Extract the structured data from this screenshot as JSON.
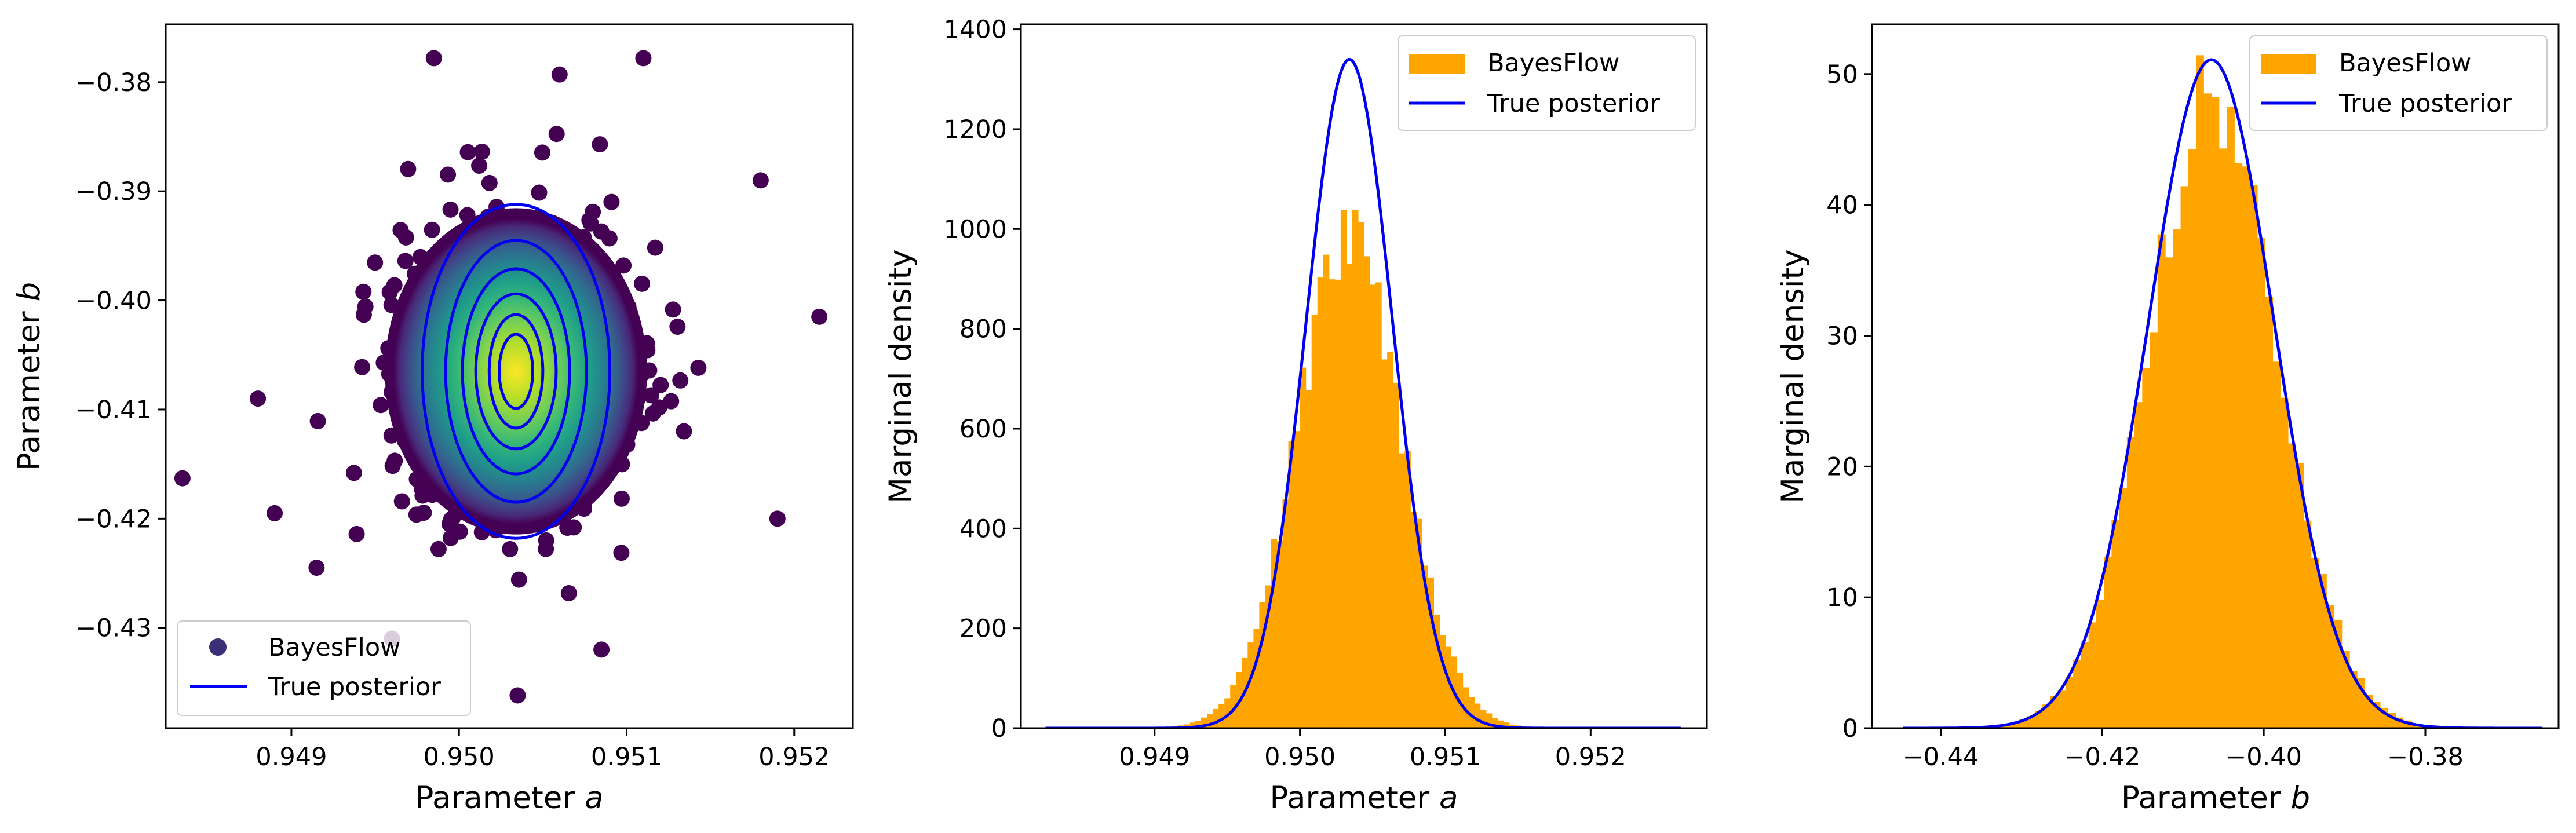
{
  "colors": {
    "histogram": "#ffa500",
    "true_posterior": "#0000ee",
    "scatter_outer": "#440154",
    "scatter_center": "#fde725",
    "legend_marker": "#3b2f78"
  },
  "chart_data": [
    {
      "type": "scatter",
      "xlabel": "Parameter a",
      "ylabel": "Parameter b",
      "xlabel_text": "Parameter ",
      "xlabel_symbol": "a",
      "ylabel_text": "Parameter ",
      "ylabel_symbol": "b",
      "xlim": [
        0.94825,
        0.95235
      ],
      "ylim": [
        -0.4392,
        -0.3747
      ],
      "xticks": [
        0.949,
        0.95,
        0.951,
        0.952
      ],
      "xtick_labels": [
        "0.949",
        "0.950",
        "0.951",
        "0.952"
      ],
      "yticks": [
        -0.38,
        -0.39,
        -0.4,
        -0.41,
        -0.42,
        -0.43
      ],
      "ytick_labels": [
        "−0.38",
        "−0.39",
        "−0.40",
        "−0.41",
        "−0.42",
        "−0.43"
      ],
      "legend": {
        "location": "lower-left",
        "entries": [
          "BayesFlow",
          "True posterior"
        ]
      },
      "scatter_center": [
        0.95034,
        -0.4065
      ],
      "scatter_sd": [
        0.00034,
        0.0065
      ],
      "outliers": [
        [
          0.94835,
          -0.4163
        ],
        [
          0.9489,
          -0.4195
        ],
        [
          0.94915,
          -0.4245
        ],
        [
          0.95215,
          -0.4015
        ],
        [
          0.9519,
          -0.42
        ],
        [
          0.9496,
          -0.431
        ],
        [
          0.95035,
          -0.4362
        ],
        [
          0.95085,
          -0.432
        ],
        [
          0.94985,
          -0.3778
        ],
        [
          0.9511,
          -0.3778
        ],
        [
          0.9506,
          -0.3793
        ],
        [
          0.9518,
          -0.389
        ],
        [
          0.9488,
          -0.409
        ]
      ],
      "contour_center": [
        0.95034,
        -0.4065
      ],
      "contour_half_widths_a": [
        0.00056,
        0.00042,
        0.00032,
        0.00024,
        0.00016,
        0.0001
      ],
      "contour_half_heights_b": [
        0.0153,
        0.012,
        0.0094,
        0.0071,
        0.0052,
        0.0034
      ]
    },
    {
      "type": "bar",
      "xlabel": "Parameter a",
      "ylabel": "Marginal density",
      "xlabel_text": "Parameter ",
      "xlabel_symbol": "a",
      "xlim": [
        0.94808,
        0.9528
      ],
      "ylim": [
        0,
        1410
      ],
      "xticks": [
        0.949,
        0.95,
        0.951,
        0.952
      ],
      "xtick_labels": [
        "0.949",
        "0.950",
        "0.951",
        "0.952"
      ],
      "yticks": [
        0,
        200,
        400,
        600,
        800,
        1000,
        1200,
        1400
      ],
      "ytick_labels": [
        "0",
        "200",
        "400",
        "600",
        "800",
        "1000",
        "1200",
        "1400"
      ],
      "legend": {
        "location": "top-right",
        "entries": [
          "BayesFlow",
          "True posterior"
        ]
      },
      "hist_mean": 0.95034,
      "hist_sd": 0.00036,
      "hist_peak": 990,
      "hist_range": [
        0.9488,
        0.9518
      ],
      "hist_bins": 75,
      "true_mean": 0.95034,
      "true_sd": 0.000298,
      "true_peak": 1340,
      "true_range": [
        0.94825,
        0.95262
      ]
    },
    {
      "type": "bar",
      "xlabel": "Parameter b",
      "ylabel": "Marginal density",
      "xlabel_text": "Parameter ",
      "xlabel_symbol": "b",
      "xlim": [
        -0.4485,
        -0.3635
      ],
      "ylim": [
        0,
        53.8
      ],
      "xticks": [
        -0.44,
        -0.42,
        -0.4,
        -0.38
      ],
      "xtick_labels": [
        "−0.44",
        "−0.42",
        "−0.40",
        "−0.38"
      ],
      "yticks": [
        0,
        10,
        20,
        30,
        40,
        50
      ],
      "ytick_labels": [
        "0",
        "10",
        "20",
        "30",
        "40",
        "50"
      ],
      "legend": {
        "location": "top-right",
        "entries": [
          "BayesFlow",
          "True posterior"
        ]
      },
      "hist_mean": -0.4062,
      "hist_sd": 0.008,
      "hist_peak": 48.5,
      "hist_range": [
        -0.435,
        -0.378
      ],
      "hist_bins": 60,
      "true_mean": -0.4065,
      "true_sd": 0.0078,
      "true_peak": 51.1,
      "true_range": [
        -0.4447,
        -0.3655
      ]
    }
  ]
}
